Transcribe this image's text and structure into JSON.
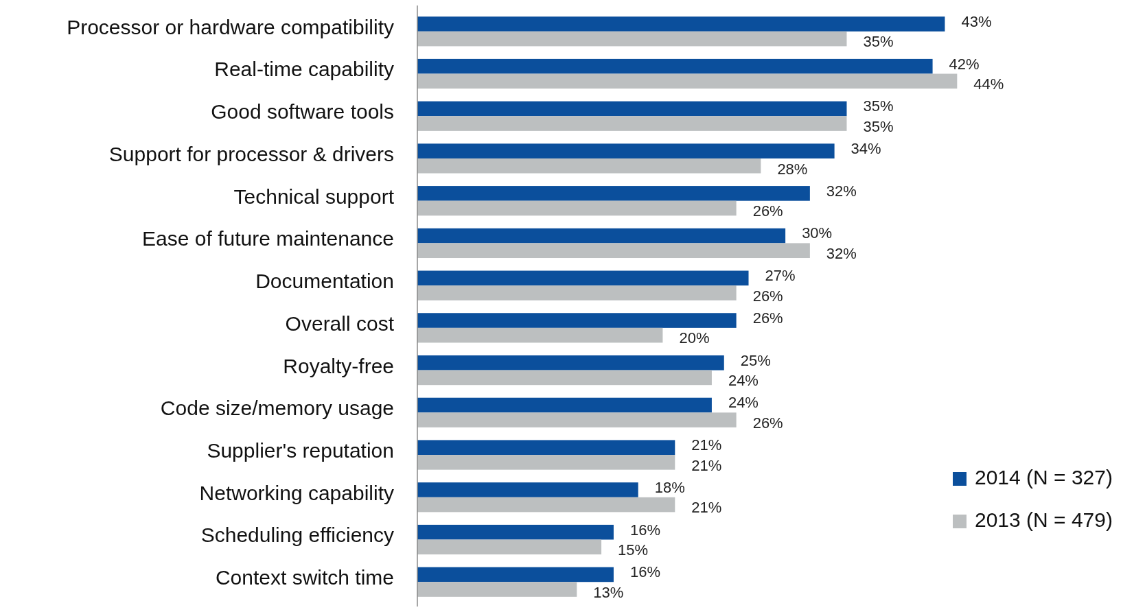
{
  "chart_data": {
    "type": "bar",
    "orientation": "horizontal",
    "legend": "bottom right",
    "categories": [
      "Processor or hardware compatibility",
      "Real-time capability",
      "Good software tools",
      "Support for processor & drivers",
      "Technical support",
      "Ease of future maintenance",
      "Documentation",
      "Overall cost",
      "Royalty-free",
      "Code size/memory usage",
      "Supplier's reputation",
      "Networking capability",
      "Scheduling efficiency",
      "Context switch time"
    ],
    "series": [
      {
        "name": "2014 (N = 327)",
        "color": "#0b4f9c",
        "values": [
          43,
          42,
          35,
          34,
          32,
          30,
          27,
          26,
          25,
          24,
          21,
          18,
          16,
          16
        ],
        "value_labels": [
          "43%",
          "42%",
          "35%",
          "34%",
          "32%",
          "30%",
          "27%",
          "26%",
          "25%",
          "24%",
          "21%",
          "18%",
          "16%",
          "16%"
        ]
      },
      {
        "name": "2013 (N = 479)",
        "color": "#bcbfc0",
        "values": [
          35,
          44,
          35,
          28,
          26,
          32,
          26,
          20,
          24,
          26,
          21,
          21,
          15,
          13
        ],
        "value_labels": [
          "35%",
          "44%",
          "35%",
          "28%",
          "26%",
          "32%",
          "26%",
          "20%",
          "24%",
          "26%",
          "21%",
          "21%",
          "15%",
          "13%"
        ]
      }
    ]
  }
}
